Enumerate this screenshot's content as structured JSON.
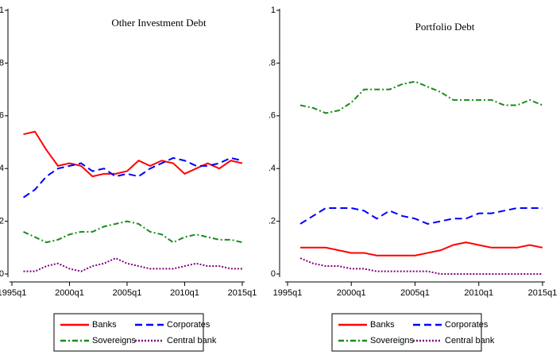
{
  "chart_data": [
    {
      "type": "line",
      "title": "Other Investment Debt",
      "x": [
        1996,
        1997,
        1998,
        1999,
        2000,
        2001,
        2002,
        2003,
        2004,
        2005,
        2006,
        2007,
        2008,
        2009,
        2010,
        2011,
        2012,
        2013,
        2014,
        2015
      ],
      "xlim": [
        1995,
        2015
      ],
      "xticks": [
        {
          "value": 1995,
          "label": "1995q1"
        },
        {
          "value": 2000,
          "label": "2000q1"
        },
        {
          "value": 2005,
          "label": "2005q1"
        },
        {
          "value": 2010,
          "label": "2010q1"
        },
        {
          "value": 2015,
          "label": "2015q1"
        }
      ],
      "ylim": [
        0,
        1
      ],
      "yticks": [
        0,
        {
          "value": 0.2,
          "label": ".2"
        },
        {
          "value": 0.4,
          "label": ".4"
        },
        {
          "value": 0.6,
          "label": ".6"
        },
        {
          "value": 0.8,
          "label": ".8"
        },
        1
      ],
      "series": [
        {
          "name": "Banks",
          "color": "#ff0000",
          "dash": "solid",
          "values": [
            0.53,
            0.54,
            0.47,
            0.41,
            0.42,
            0.41,
            0.37,
            0.38,
            0.38,
            0.39,
            0.43,
            0.41,
            0.43,
            0.42,
            0.38,
            0.4,
            0.42,
            0.4,
            0.43,
            0.42
          ]
        },
        {
          "name": "Corporates",
          "color": "#0000ff",
          "dash": "dashed",
          "values": [
            0.29,
            0.32,
            0.37,
            0.4,
            0.41,
            0.42,
            0.39,
            0.4,
            0.37,
            0.38,
            0.37,
            0.4,
            0.42,
            0.44,
            0.43,
            0.41,
            0.41,
            0.42,
            0.44,
            0.43
          ]
        },
        {
          "name": "Sovereigns",
          "color": "#1a8c1a",
          "dash": "dashdot",
          "values": [
            0.16,
            0.14,
            0.12,
            0.13,
            0.15,
            0.16,
            0.16,
            0.18,
            0.19,
            0.2,
            0.19,
            0.16,
            0.15,
            0.12,
            0.14,
            0.15,
            0.14,
            0.13,
            0.13,
            0.12
          ]
        },
        {
          "name": "Central bank",
          "color": "#800080",
          "dash": "dotted",
          "values": [
            0.01,
            0.01,
            0.03,
            0.04,
            0.02,
            0.01,
            0.03,
            0.04,
            0.06,
            0.04,
            0.03,
            0.02,
            0.02,
            0.02,
            0.03,
            0.04,
            0.03,
            0.03,
            0.02,
            0.02
          ]
        }
      ]
    },
    {
      "type": "line",
      "title": "Portfolio Debt",
      "x": [
        1996,
        1997,
        1998,
        1999,
        2000,
        2001,
        2002,
        2003,
        2004,
        2005,
        2006,
        2007,
        2008,
        2009,
        2010,
        2011,
        2012,
        2013,
        2014,
        2015
      ],
      "xlim": [
        1995,
        2015
      ],
      "xticks": [
        {
          "value": 1995,
          "label": "1995q1"
        },
        {
          "value": 2000,
          "label": "2000q1"
        },
        {
          "value": 2005,
          "label": "2005q1"
        },
        {
          "value": 2010,
          "label": "2010q1"
        },
        {
          "value": 2015,
          "label": "2015q1"
        }
      ],
      "ylim": [
        0,
        1
      ],
      "yticks": [
        0,
        {
          "value": 0.2,
          "label": ".2"
        },
        {
          "value": 0.4,
          "label": ".4"
        },
        {
          "value": 0.6,
          "label": ".6"
        },
        {
          "value": 0.8,
          "label": ".8"
        },
        1
      ],
      "series": [
        {
          "name": "Banks",
          "color": "#ff0000",
          "dash": "solid",
          "values": [
            0.1,
            0.1,
            0.1,
            0.09,
            0.08,
            0.08,
            0.07,
            0.07,
            0.07,
            0.07,
            0.08,
            0.09,
            0.11,
            0.12,
            0.11,
            0.1,
            0.1,
            0.1,
            0.11,
            0.1
          ]
        },
        {
          "name": "Corporates",
          "color": "#0000ff",
          "dash": "dashed",
          "values": [
            0.19,
            0.22,
            0.25,
            0.25,
            0.25,
            0.24,
            0.21,
            0.24,
            0.22,
            0.21,
            0.19,
            0.2,
            0.21,
            0.21,
            0.23,
            0.23,
            0.24,
            0.25,
            0.25,
            0.25
          ]
        },
        {
          "name": "Sovereigns",
          "color": "#1a8c1a",
          "dash": "dashdot",
          "values": [
            0.64,
            0.63,
            0.61,
            0.62,
            0.65,
            0.7,
            0.7,
            0.7,
            0.72,
            0.73,
            0.71,
            0.69,
            0.66,
            0.66,
            0.66,
            0.66,
            0.64,
            0.64,
            0.66,
            0.64
          ]
        },
        {
          "name": "Central bank",
          "color": "#800080",
          "dash": "dotted",
          "values": [
            0.06,
            0.04,
            0.03,
            0.03,
            0.02,
            0.02,
            0.01,
            0.01,
            0.01,
            0.01,
            0.01,
            0,
            0,
            0,
            0,
            0,
            0,
            0,
            0,
            0
          ]
        }
      ]
    }
  ]
}
